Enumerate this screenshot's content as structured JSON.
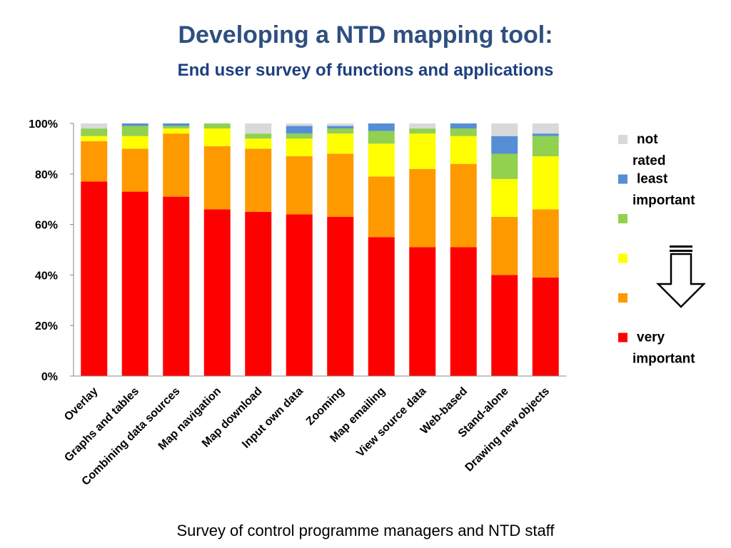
{
  "slide": {
    "title": "Developing a NTD mapping tool:",
    "subtitle": "End user survey of functions and applications",
    "footer": "Survey of control programme managers and NTD staff"
  },
  "chart_data": {
    "type": "bar",
    "stacked": true,
    "title": "",
    "xlabel": "",
    "ylabel": "",
    "ylim": [
      0,
      100
    ],
    "yticks": [
      "0%",
      "20%",
      "40%",
      "60%",
      "80%",
      "100%"
    ],
    "grid": false,
    "legend_position": "right",
    "categories": [
      "Overlay",
      "Graphs and tables",
      "Combining data sources",
      "Map navigation",
      "Map download",
      "Input own data",
      "Zooming",
      "Map emailing",
      "View source data",
      "Web-based",
      "Stand-alone",
      "Drawing new objects"
    ],
    "series": [
      {
        "name": "very important",
        "color": "#FF0000",
        "values": [
          77,
          73,
          71,
          66,
          65,
          64,
          63,
          55,
          51,
          51,
          40,
          39
        ]
      },
      {
        "name": "",
        "color": "#FF9900",
        "values": [
          16,
          17,
          25,
          25,
          25,
          23,
          25,
          24,
          31,
          33,
          23,
          27
        ]
      },
      {
        "name": "",
        "color": "#FFFF00",
        "values": [
          2,
          5,
          2,
          7,
          4,
          7,
          8,
          13,
          14,
          11,
          15,
          21
        ]
      },
      {
        "name": "",
        "color": "#92D050",
        "values": [
          3,
          4,
          1,
          2,
          2,
          2,
          2,
          5,
          2,
          3,
          10,
          8
        ]
      },
      {
        "name": "least important",
        "color": "#558ED5",
        "values": [
          0,
          1,
          1,
          0,
          0,
          3,
          1,
          3,
          0,
          2,
          7,
          1
        ]
      },
      {
        "name": "not rated",
        "color": "#D9D9D9",
        "values": [
          2,
          0,
          0,
          0,
          4,
          1,
          1,
          0,
          2,
          0,
          5,
          4
        ]
      }
    ]
  }
}
